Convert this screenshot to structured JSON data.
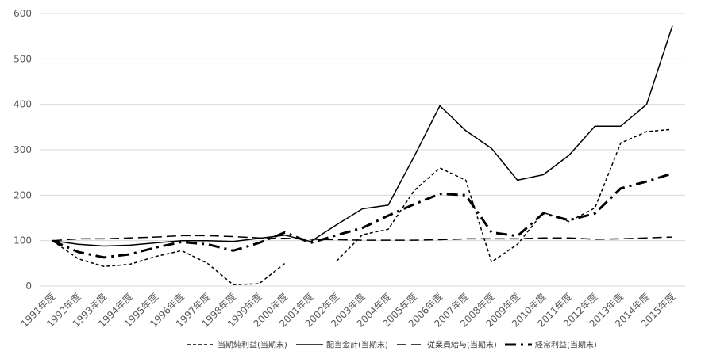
{
  "chart_data": {
    "type": "line",
    "categories": [
      "1991年度",
      "1992年度",
      "1993年度",
      "1994年度",
      "1995年度",
      "1996年度",
      "1997年度",
      "1998年度",
      "1999年度",
      "2000年度",
      "2001年度",
      "2002年度",
      "2003年度",
      "2004年度",
      "2005年度",
      "2006年度",
      "2007年度",
      "2008年度",
      "2009年度",
      "2010年度",
      "2011年度",
      "2012年度",
      "2013年度",
      "2014年度",
      "2015年度"
    ],
    "ylim": [
      0,
      600
    ],
    "yticks": [
      0,
      100,
      200,
      300,
      400,
      500,
      600
    ],
    "grid": true,
    "legend_position": "bottom",
    "series": [
      {
        "name": "当期純利益(当期末)",
        "style": "short-dash",
        "color": "#000000",
        "values": [
          100,
          60,
          43,
          48,
          65,
          78,
          50,
          3,
          5,
          50,
          null,
          55,
          113,
          125,
          210,
          260,
          233,
          53,
          92,
          162,
          142,
          172,
          315,
          340,
          345
        ],
        "missing_segments": [
          [
            9,
            10
          ],
          [
            10,
            11
          ]
        ]
      },
      {
        "name": "配当金計(当期末)",
        "style": "solid",
        "color": "#000000",
        "values": [
          100,
          92,
          88,
          90,
          95,
          100,
          100,
          98,
          105,
          112,
          98,
          135,
          170,
          178,
          285,
          397,
          342,
          303,
          233,
          245,
          288,
          352,
          352,
          400,
          573
        ]
      },
      {
        "name": "従業員給与(当期末)",
        "style": "long-dash",
        "color": "#000000",
        "values": [
          100,
          104,
          104,
          106,
          108,
          111,
          111,
          109,
          106,
          105,
          103,
          102,
          101,
          101,
          101,
          102,
          104,
          104,
          104,
          106,
          106,
          103,
          104,
          106,
          108
        ]
      },
      {
        "name": "経常利益(当期末)",
        "style": "dash-dot",
        "color": "#000000",
        "values": [
          100,
          75,
          63,
          70,
          85,
          97,
          92,
          78,
          95,
          118,
          95,
          112,
          128,
          155,
          180,
          203,
          200,
          118,
          110,
          160,
          145,
          160,
          215,
          230,
          248
        ]
      }
    ]
  }
}
